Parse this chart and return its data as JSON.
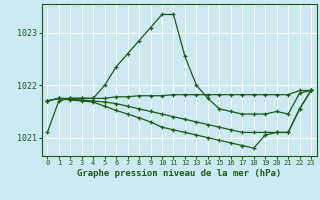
{
  "bg_color": "#cce8f0",
  "grid_color": "#ffffff",
  "line_color": "#1a5c1a",
  "title": "Graphe pression niveau de la mer (hPa)",
  "xlim": [
    -0.5,
    23.5
  ],
  "ylim": [
    1020.65,
    1023.55
  ],
  "yticks": [
    1021,
    1022,
    1023
  ],
  "xticks": [
    0,
    1,
    2,
    3,
    4,
    5,
    6,
    7,
    8,
    9,
    10,
    11,
    12,
    13,
    14,
    15,
    16,
    17,
    18,
    19,
    20,
    21,
    22,
    23
  ],
  "series": [
    {
      "x": [
        0,
        1,
        2,
        3,
        4,
        5,
        6,
        7,
        8,
        9,
        10,
        11,
        12,
        13,
        14,
        15,
        16,
        17,
        18,
        19,
        20,
        21,
        22,
        23
      ],
      "y": [
        1021.1,
        1021.7,
        1021.75,
        1021.75,
        1021.75,
        1022.0,
        1022.35,
        1022.6,
        1022.85,
        1023.1,
        1023.35,
        1023.35,
        1022.55,
        1022.0,
        1021.75,
        1021.55,
        1021.5,
        1021.45,
        1021.45,
        1021.45,
        1021.5,
        1021.45,
        1021.85,
        1021.9
      ]
    },
    {
      "x": [
        0,
        1,
        2,
        3,
        4,
        5,
        6,
        7,
        8,
        9,
        10,
        11,
        12,
        13,
        14,
        15,
        16,
        17,
        18,
        19,
        20,
        21,
        22,
        23
      ],
      "y": [
        1021.7,
        1021.75,
        1021.75,
        1021.75,
        1021.75,
        1021.75,
        1021.78,
        1021.78,
        1021.8,
        1021.8,
        1021.8,
        1021.82,
        1021.82,
        1021.82,
        1021.82,
        1021.82,
        1021.82,
        1021.82,
        1021.82,
        1021.82,
        1021.82,
        1021.82,
        1021.9,
        1021.9
      ]
    },
    {
      "x": [
        0,
        1,
        2,
        3,
        4,
        5,
        6,
        7,
        8,
        9,
        10,
        11,
        12,
        13,
        14,
        15,
        16,
        17,
        18,
        19,
        20,
        21,
        22,
        23
      ],
      "y": [
        1021.7,
        1021.75,
        1021.73,
        1021.72,
        1021.7,
        1021.68,
        1021.65,
        1021.6,
        1021.55,
        1021.5,
        1021.45,
        1021.4,
        1021.35,
        1021.3,
        1021.25,
        1021.2,
        1021.15,
        1021.1,
        1021.1,
        1021.1,
        1021.1,
        1021.1,
        1021.55,
        1021.9
      ]
    },
    {
      "x": [
        0,
        1,
        2,
        3,
        4,
        5,
        6,
        7,
        8,
        9,
        10,
        11,
        12,
        13,
        14,
        15,
        16,
        17,
        18,
        19,
        20,
        21,
        22,
        23
      ],
      "y": [
        1021.7,
        1021.75,
        1021.72,
        1021.7,
        1021.68,
        1021.6,
        1021.52,
        1021.45,
        1021.38,
        1021.3,
        1021.2,
        1021.15,
        1021.1,
        1021.05,
        1021.0,
        1020.95,
        1020.9,
        1020.85,
        1020.8,
        1021.05,
        1021.1,
        1021.1,
        1021.55,
        1021.9
      ]
    }
  ]
}
